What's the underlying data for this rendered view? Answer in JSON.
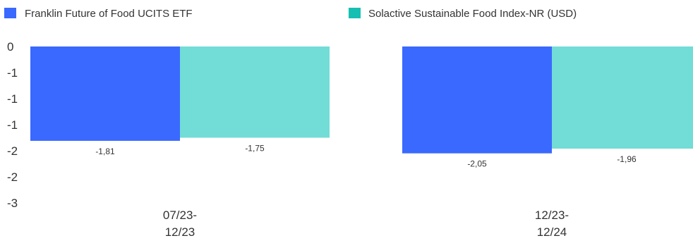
{
  "chart_data": {
    "type": "bar",
    "title": "",
    "xlabel": "",
    "ylabel": "",
    "ylim": [
      -3,
      0
    ],
    "y_ticks": [
      "0",
      "-1",
      "-1",
      "-1",
      "-2",
      "-2",
      "-3"
    ],
    "y_tick_values": [
      0,
      -0.5,
      -1,
      -1.5,
      -2,
      -2.5,
      -3
    ],
    "grid": false,
    "legend_position": "top",
    "categories": [
      {
        "line1": "07/23-",
        "line2": "12/23"
      },
      {
        "line1": "12/23-",
        "line2": "12/24"
      }
    ],
    "series": [
      {
        "name": "Franklin Future of Food UCITS ETF",
        "color": "#3a69ff",
        "values": [
          -1.81,
          -2.05
        ],
        "labels": [
          "-1,81",
          "-2,05"
        ]
      },
      {
        "name": "Solactive Sustainable Food Index-NR (USD)",
        "color": "#72dcd6",
        "values": [
          -1.75,
          -1.96
        ],
        "labels": [
          "-1,75",
          "-1,96"
        ]
      }
    ],
    "legend_marker_colors": [
      "#3a69ff",
      "#17bfb3"
    ]
  }
}
